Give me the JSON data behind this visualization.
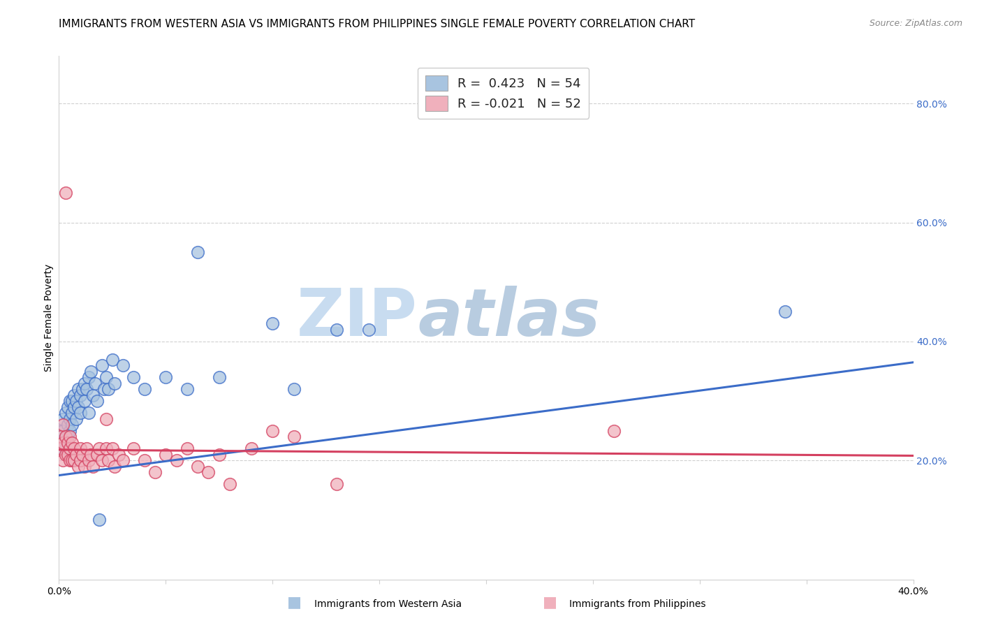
{
  "title": "IMMIGRANTS FROM WESTERN ASIA VS IMMIGRANTS FROM PHILIPPINES SINGLE FEMALE POVERTY CORRELATION CHART",
  "source": "Source: ZipAtlas.com",
  "ylabel": "Single Female Poverty",
  "x_min": 0.0,
  "x_max": 0.4,
  "y_min": 0.0,
  "y_max": 0.88,
  "y_ticks": [
    0.2,
    0.4,
    0.6,
    0.8
  ],
  "y_tick_labels": [
    "20.0%",
    "40.0%",
    "60.0%",
    "80.0%"
  ],
  "legend_label_blue": "Immigrants from Western Asia",
  "legend_label_pink": "Immigrants from Philippines",
  "blue_color": "#A8C4E0",
  "pink_color": "#F0B0BC",
  "blue_line_color": "#3B6CC8",
  "pink_line_color": "#D44060",
  "blue_scatter": [
    [
      0.001,
      0.25
    ],
    [
      0.001,
      0.23
    ],
    [
      0.002,
      0.27
    ],
    [
      0.002,
      0.25
    ],
    [
      0.002,
      0.22
    ],
    [
      0.003,
      0.28
    ],
    [
      0.003,
      0.24
    ],
    [
      0.003,
      0.22
    ],
    [
      0.004,
      0.26
    ],
    [
      0.004,
      0.29
    ],
    [
      0.004,
      0.24
    ],
    [
      0.005,
      0.3
    ],
    [
      0.005,
      0.27
    ],
    [
      0.005,
      0.25
    ],
    [
      0.006,
      0.28
    ],
    [
      0.006,
      0.26
    ],
    [
      0.006,
      0.3
    ],
    [
      0.007,
      0.31
    ],
    [
      0.007,
      0.29
    ],
    [
      0.008,
      0.3
    ],
    [
      0.008,
      0.27
    ],
    [
      0.009,
      0.32
    ],
    [
      0.009,
      0.29
    ],
    [
      0.01,
      0.31
    ],
    [
      0.01,
      0.28
    ],
    [
      0.011,
      0.32
    ],
    [
      0.012,
      0.33
    ],
    [
      0.012,
      0.3
    ],
    [
      0.013,
      0.32
    ],
    [
      0.014,
      0.34
    ],
    [
      0.014,
      0.28
    ],
    [
      0.015,
      0.35
    ],
    [
      0.016,
      0.31
    ],
    [
      0.017,
      0.33
    ],
    [
      0.018,
      0.3
    ],
    [
      0.019,
      0.1
    ],
    [
      0.02,
      0.36
    ],
    [
      0.021,
      0.32
    ],
    [
      0.022,
      0.34
    ],
    [
      0.023,
      0.32
    ],
    [
      0.025,
      0.37
    ],
    [
      0.026,
      0.33
    ],
    [
      0.03,
      0.36
    ],
    [
      0.035,
      0.34
    ],
    [
      0.04,
      0.32
    ],
    [
      0.05,
      0.34
    ],
    [
      0.06,
      0.32
    ],
    [
      0.065,
      0.55
    ],
    [
      0.075,
      0.34
    ],
    [
      0.1,
      0.43
    ],
    [
      0.11,
      0.32
    ],
    [
      0.13,
      0.42
    ],
    [
      0.145,
      0.42
    ],
    [
      0.34,
      0.45
    ]
  ],
  "pink_scatter": [
    [
      0.001,
      0.24
    ],
    [
      0.001,
      0.22
    ],
    [
      0.002,
      0.26
    ],
    [
      0.002,
      0.23
    ],
    [
      0.002,
      0.2
    ],
    [
      0.003,
      0.65
    ],
    [
      0.003,
      0.24
    ],
    [
      0.003,
      0.21
    ],
    [
      0.004,
      0.23
    ],
    [
      0.004,
      0.21
    ],
    [
      0.005,
      0.24
    ],
    [
      0.005,
      0.22
    ],
    [
      0.005,
      0.2
    ],
    [
      0.006,
      0.23
    ],
    [
      0.006,
      0.2
    ],
    [
      0.007,
      0.22
    ],
    [
      0.007,
      0.2
    ],
    [
      0.008,
      0.21
    ],
    [
      0.009,
      0.19
    ],
    [
      0.01,
      0.22
    ],
    [
      0.01,
      0.2
    ],
    [
      0.011,
      0.21
    ],
    [
      0.012,
      0.19
    ],
    [
      0.013,
      0.22
    ],
    [
      0.014,
      0.2
    ],
    [
      0.015,
      0.21
    ],
    [
      0.016,
      0.19
    ],
    [
      0.018,
      0.21
    ],
    [
      0.019,
      0.22
    ],
    [
      0.02,
      0.2
    ],
    [
      0.022,
      0.27
    ],
    [
      0.022,
      0.22
    ],
    [
      0.023,
      0.2
    ],
    [
      0.025,
      0.22
    ],
    [
      0.026,
      0.19
    ],
    [
      0.028,
      0.21
    ],
    [
      0.03,
      0.2
    ],
    [
      0.035,
      0.22
    ],
    [
      0.04,
      0.2
    ],
    [
      0.045,
      0.18
    ],
    [
      0.05,
      0.21
    ],
    [
      0.055,
      0.2
    ],
    [
      0.06,
      0.22
    ],
    [
      0.065,
      0.19
    ],
    [
      0.07,
      0.18
    ],
    [
      0.075,
      0.21
    ],
    [
      0.08,
      0.16
    ],
    [
      0.09,
      0.22
    ],
    [
      0.1,
      0.25
    ],
    [
      0.11,
      0.24
    ],
    [
      0.13,
      0.16
    ],
    [
      0.26,
      0.25
    ]
  ],
  "blue_line_x": [
    0.0,
    0.4
  ],
  "blue_line_y": [
    0.175,
    0.365
  ],
  "pink_line_x": [
    0.0,
    0.4
  ],
  "pink_line_y": [
    0.218,
    0.208
  ],
  "background_color": "#ffffff",
  "grid_color": "#d0d0d0",
  "title_fontsize": 11,
  "axis_label_fontsize": 10,
  "tick_fontsize": 10
}
